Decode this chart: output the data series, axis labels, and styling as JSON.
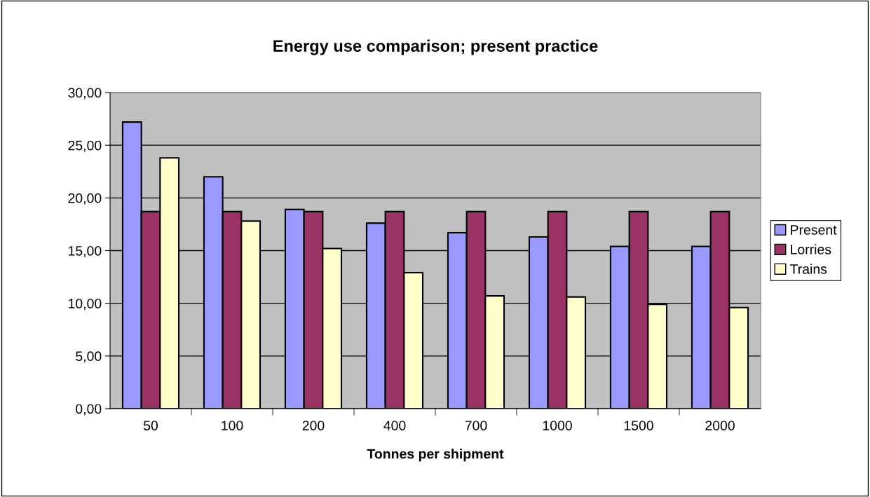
{
  "chart_data": {
    "type": "bar",
    "title": "Energy use comparison; present practice",
    "xlabel": "Tonnes per shipment",
    "categories": [
      "50",
      "100",
      "200",
      "400",
      "700",
      "1000",
      "1500",
      "2000"
    ],
    "series": [
      {
        "name": "Present",
        "color": "#9999ff",
        "values": [
          27.2,
          22.0,
          18.9,
          17.6,
          16.7,
          16.3,
          15.4,
          15.4
        ]
      },
      {
        "name": "Lorries",
        "color": "#993366",
        "values": [
          18.7,
          18.7,
          18.7,
          18.7,
          18.7,
          18.7,
          18.7,
          18.7
        ]
      },
      {
        "name": "Trains",
        "color": "#ffffcc",
        "values": [
          23.8,
          17.8,
          15.2,
          12.9,
          10.7,
          10.6,
          9.9,
          9.6
        ]
      }
    ],
    "ylim": [
      0,
      30
    ],
    "yticks": [
      {
        "value": 0,
        "label": "0,00"
      },
      {
        "value": 5,
        "label": "5,00"
      },
      {
        "value": 10,
        "label": "10,00"
      },
      {
        "value": 15,
        "label": "15,00"
      },
      {
        "value": 20,
        "label": "20,00"
      },
      {
        "value": 25,
        "label": "25,00"
      },
      {
        "value": 30,
        "label": "30,00"
      }
    ],
    "grid": "y",
    "legend": "right"
  }
}
